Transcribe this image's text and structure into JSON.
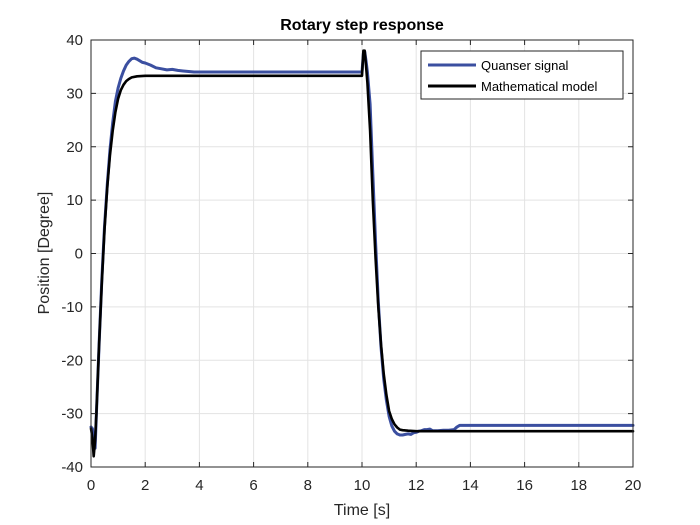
{
  "chart_data": {
    "type": "line",
    "title": "Rotary step response",
    "xlabel": "Time  [s]",
    "ylabel": "Position [Degree]",
    "xlim": [
      0,
      20
    ],
    "ylim": [
      -40,
      40
    ],
    "xticks": [
      0,
      2,
      4,
      6,
      8,
      10,
      12,
      14,
      16,
      18,
      20
    ],
    "yticks": [
      -40,
      -30,
      -20,
      -10,
      0,
      10,
      20,
      30,
      40
    ],
    "grid": true,
    "legend_position": "top-right",
    "series": [
      {
        "name": "Quanser signal",
        "color": "#3b4fa0",
        "x": [
          0,
          0.05,
          0.1,
          0.15,
          0.2,
          0.3,
          0.4,
          0.5,
          0.6,
          0.7,
          0.8,
          0.9,
          1.0,
          1.1,
          1.2,
          1.3,
          1.4,
          1.5,
          1.6,
          1.7,
          1.8,
          1.9,
          2.0,
          2.2,
          2.4,
          2.6,
          2.8,
          3.0,
          3.2,
          3.4,
          3.6,
          3.8,
          4.0,
          5.0,
          6.0,
          7.0,
          8.0,
          9.0,
          10.0,
          10.05,
          10.1,
          10.15,
          10.2,
          10.3,
          10.4,
          10.5,
          10.6,
          10.7,
          10.8,
          10.9,
          11.0,
          11.1,
          11.2,
          11.3,
          11.4,
          11.5,
          11.6,
          11.7,
          11.8,
          11.9,
          12.0,
          12.1,
          12.2,
          12.3,
          12.4,
          12.5,
          12.6,
          12.8,
          13.0,
          13.2,
          13.4,
          13.5,
          13.6,
          14.0,
          16.0,
          18.0,
          20.0
        ],
        "y": [
          -32.5,
          -32.8,
          -35.5,
          -36.5,
          -30.0,
          -17.0,
          -5.0,
          5.0,
          13.0,
          19.5,
          24.5,
          28.5,
          31.0,
          32.8,
          34.2,
          35.3,
          36.0,
          36.5,
          36.6,
          36.4,
          36.1,
          35.8,
          35.7,
          35.3,
          34.8,
          34.6,
          34.4,
          34.5,
          34.3,
          34.2,
          34.1,
          34.0,
          34.0,
          34.0,
          34.0,
          34.0,
          34.0,
          34.0,
          34.0,
          37.5,
          37.8,
          36.0,
          34.0,
          28.0,
          15.0,
          2.0,
          -9.0,
          -17.5,
          -23.5,
          -27.5,
          -30.5,
          -32.3,
          -33.3,
          -33.8,
          -34.0,
          -34.0,
          -33.9,
          -33.8,
          -33.9,
          -33.6,
          -33.5,
          -33.3,
          -33.2,
          -33.0,
          -33.0,
          -32.9,
          -33.2,
          -33.2,
          -33.1,
          -33.1,
          -33.0,
          -32.5,
          -32.2,
          -32.2,
          -32.2,
          -32.2,
          -32.2
        ]
      },
      {
        "name": "Mathematical model",
        "color": "#000000",
        "x": [
          0,
          0.05,
          0.1,
          0.15,
          0.2,
          0.3,
          0.4,
          0.5,
          0.6,
          0.7,
          0.8,
          0.9,
          1.0,
          1.1,
          1.2,
          1.3,
          1.4,
          1.5,
          1.7,
          2.0,
          2.5,
          3.0,
          4.0,
          6.0,
          8.0,
          9.0,
          9.9,
          10.0,
          10.05,
          10.1,
          10.15,
          10.2,
          10.3,
          10.4,
          10.5,
          10.6,
          10.7,
          10.8,
          10.9,
          11.0,
          11.1,
          11.2,
          11.3,
          11.4,
          11.5,
          11.7,
          12.0,
          12.5,
          13.0,
          14.0,
          16.0,
          18.0,
          20.0
        ],
        "y": [
          -32.8,
          -34.5,
          -38.0,
          -35.0,
          -30.0,
          -17.0,
          -5.5,
          4.5,
          12.5,
          18.5,
          23.0,
          26.5,
          29.0,
          30.6,
          31.6,
          32.3,
          32.7,
          33.0,
          33.2,
          33.3,
          33.3,
          33.3,
          33.3,
          33.3,
          33.3,
          33.3,
          33.3,
          33.3,
          38.0,
          38.0,
          35.0,
          32.0,
          23.0,
          10.0,
          -1.0,
          -10.0,
          -17.0,
          -22.5,
          -26.5,
          -29.5,
          -31.0,
          -32.0,
          -32.6,
          -33.0,
          -33.1,
          -33.2,
          -33.3,
          -33.3,
          -33.3,
          -33.3,
          -33.3,
          -33.3,
          -33.3
        ]
      }
    ]
  }
}
